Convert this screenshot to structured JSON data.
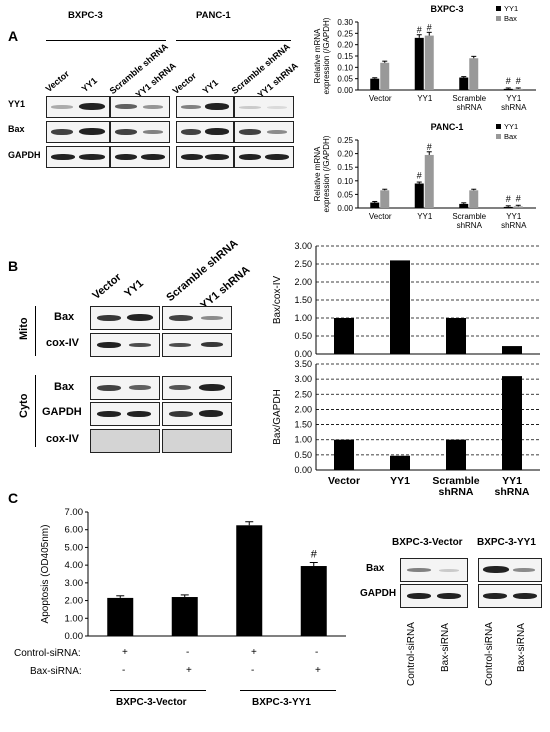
{
  "panel_a": {
    "letter": "A",
    "cell_lines": [
      "BXPC-3",
      "PANC-1"
    ],
    "lanes_bx": [
      "Vector",
      "YY1",
      "Scramble shRNA",
      "YY1 shRNA"
    ],
    "lanes_pa": [
      "Vector",
      "YY1",
      "Scramble shRNA",
      "YY1 shRNA"
    ],
    "rows": [
      "YY1",
      "Bax",
      "GAPDH"
    ]
  },
  "panel_b": {
    "letter": "B",
    "lanes": [
      "Vector",
      "YY1",
      "Scramble shRNA",
      "YY1 shRNA"
    ],
    "fraction_mito": "Mito",
    "fraction_cyto": "Cyto",
    "mito_rows": [
      "Bax",
      "cox-IV"
    ],
    "cyto_rows": [
      "Bax",
      "GAPDH",
      "cox-IV"
    ]
  },
  "panel_c": {
    "letter": "C",
    "control_label": "Control-siRNA:",
    "bax_label": "Bax-siRNA:",
    "control_signs": [
      "+",
      "-",
      "+",
      "-"
    ],
    "bax_signs": [
      "-",
      "+",
      "-",
      "+"
    ],
    "group_labels": [
      "BXPC-3-Vector",
      "BXPC-3-YY1"
    ],
    "blot_titles": [
      "BXPC-3-Vector",
      "BXPC-3-YY1"
    ],
    "blot_rows": [
      "Bax",
      "GAPDH"
    ],
    "blot_lanes": [
      "Control-siRNA",
      "Bax-siRNA",
      "Control-siRNA",
      "Bax-siRNA"
    ]
  },
  "chart_data": [
    {
      "type": "bar",
      "title": "BXPC-3",
      "ylabel": "Relative mRNA expression (/GAPDH)",
      "categories": [
        "Vector",
        "YY1",
        "Scramble shRNA",
        "YY1 shRNA"
      ],
      "series": [
        {
          "name": "YY1",
          "color": "#000000",
          "values": [
            0.05,
            0.23,
            0.055,
            0.005
          ]
        },
        {
          "name": "Bax",
          "color": "#999999",
          "values": [
            0.12,
            0.24,
            0.14,
            0.005
          ]
        }
      ],
      "ylim": [
        0,
        0.3
      ],
      "yticks": [
        "0.00",
        "0.05",
        "0.10",
        "0.15",
        "0.20",
        "0.25",
        "0.30"
      ],
      "annotations": [
        "#",
        "#",
        "#",
        "#"
      ],
      "legend": "top-right"
    },
    {
      "type": "bar",
      "title": "PANC-1",
      "ylabel": "Relative mRNA expression (/GAPDH)",
      "categories": [
        "Vector",
        "YY1",
        "Scramble shRNA",
        "YY1 shRNA"
      ],
      "series": [
        {
          "name": "YY1",
          "color": "#000000",
          "values": [
            0.02,
            0.09,
            0.015,
            0.004
          ]
        },
        {
          "name": "Bax",
          "color": "#999999",
          "values": [
            0.065,
            0.195,
            0.065,
            0.006
          ]
        }
      ],
      "ylim": [
        0,
        0.25
      ],
      "yticks": [
        "0.00",
        "0.05",
        "0.10",
        "0.15",
        "0.20",
        "0.25"
      ],
      "annotations": [
        "#",
        "#",
        "#",
        "#"
      ],
      "legend": "top-right"
    },
    {
      "type": "bar",
      "ylabel": "Bax/cox-IV",
      "categories": [
        "Vector",
        "YY1",
        "Scramble shRNA",
        "YY1 shRNA"
      ],
      "values": [
        1.0,
        2.6,
        1.0,
        0.22
      ],
      "ylim": [
        0,
        3.0
      ],
      "yticks": [
        "0.00",
        "0.50",
        "1.00",
        "1.50",
        "2.00",
        "2.50",
        "3.00"
      ],
      "grid": true
    },
    {
      "type": "bar",
      "ylabel": "Bax/GAPDH",
      "categories": [
        "Vector",
        "YY1",
        "Scramble shRNA",
        "YY1 shRNA"
      ],
      "values": [
        1.0,
        0.47,
        1.0,
        3.1
      ],
      "ylim": [
        0,
        3.5
      ],
      "yticks": [
        "0.00",
        "0.50",
        "1.00",
        "1.50",
        "2.00",
        "2.50",
        "3.00",
        "3.50"
      ],
      "grid": true
    },
    {
      "type": "bar",
      "ylabel": "Apoptosis (OD405nm)",
      "values": [
        2.15,
        2.2,
        6.25,
        3.95
      ],
      "errors": [
        0.12,
        0.12,
        0.2,
        0.2
      ],
      "ylim": [
        0,
        7.0
      ],
      "yticks": [
        "0.00",
        "1.00",
        "2.00",
        "3.00",
        "4.00",
        "5.00",
        "6.00",
        "7.00"
      ],
      "annotations": [
        "",
        "",
        "",
        "#"
      ]
    }
  ]
}
